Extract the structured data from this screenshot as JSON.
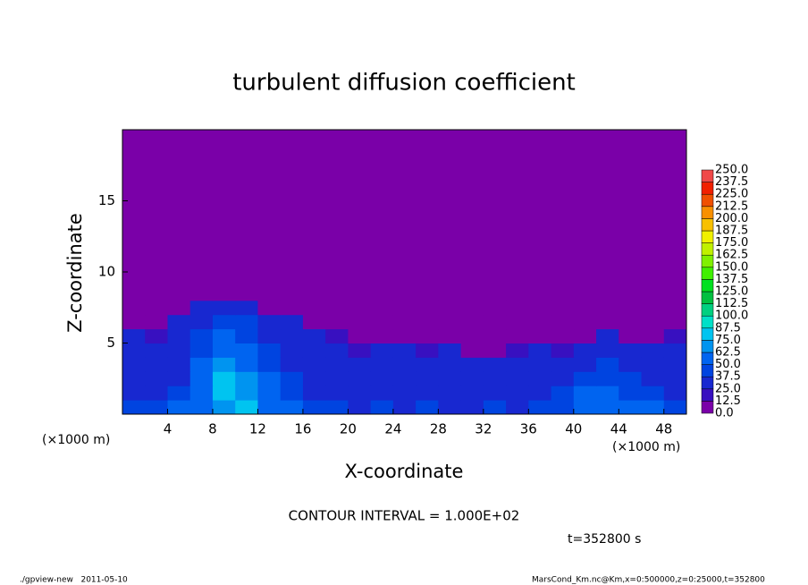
{
  "chart_data": {
    "type": "heatmap",
    "title": "turbulent diffusion coefficient",
    "xlabel": "X-coordinate",
    "ylabel": "Z-coordinate",
    "xunits": "(×1000 m)",
    "yunits": "(×1000 m)",
    "annotation": "CONTOUR INTERVAL = 1.000E+02",
    "time_label": "t=352800 s",
    "footer_left": "./gpview-new   2011-05-10",
    "footer_right": "MarsCond_Km.nc@Km,x=0:500000,z=0:25000,t=352800",
    "xlim": [
      0,
      50
    ],
    "ylim": [
      0,
      20
    ],
    "xticks": [
      4,
      8,
      12,
      16,
      20,
      24,
      28,
      32,
      36,
      40,
      44,
      48
    ],
    "yticks": [
      5,
      10,
      15
    ],
    "x_bins": [
      0,
      2,
      4,
      6,
      8,
      10,
      12,
      14,
      16,
      18,
      20,
      22,
      24,
      26,
      28,
      30,
      32,
      34,
      36,
      38,
      40,
      42,
      44,
      46,
      48,
      50
    ],
    "y_bins": [
      0,
      1,
      2,
      3,
      4,
      5,
      6,
      7,
      8,
      20
    ],
    "values": [
      [
        45,
        40,
        55,
        50,
        70,
        75,
        60,
        50,
        45,
        40,
        35,
        40,
        35,
        40,
        30,
        35,
        40,
        35,
        40,
        45,
        60,
        55,
        60,
        50,
        40
      ],
      [
        35,
        30,
        40,
        60,
        75,
        70,
        55,
        40,
        35,
        30,
        30,
        35,
        30,
        25,
        30,
        35,
        30,
        30,
        35,
        40,
        55,
        50,
        45,
        40,
        35
      ],
      [
        30,
        30,
        35,
        55,
        80,
        65,
        50,
        40,
        35,
        30,
        25,
        30,
        30,
        25,
        25,
        30,
        35,
        30,
        30,
        35,
        40,
        45,
        40,
        35,
        30
      ],
      [
        25,
        30,
        30,
        50,
        70,
        60,
        45,
        35,
        30,
        30,
        30,
        25,
        35,
        30,
        25,
        30,
        25,
        30,
        25,
        30,
        35,
        40,
        35,
        30,
        30
      ],
      [
        25,
        25,
        30,
        40,
        60,
        50,
        40,
        35,
        30,
        25,
        20,
        30,
        25,
        20,
        25,
        5,
        5,
        20,
        25,
        20,
        25,
        35,
        30,
        25,
        30
      ],
      [
        25,
        20,
        30,
        40,
        55,
        45,
        35,
        30,
        25,
        20,
        5,
        5,
        5,
        5,
        5,
        5,
        5,
        5,
        5,
        5,
        5,
        30,
        5,
        5,
        20
      ],
      [
        5,
        5,
        25,
        35,
        45,
        40,
        30,
        25,
        5,
        5,
        5,
        5,
        5,
        5,
        5,
        5,
        5,
        5,
        5,
        5,
        5,
        5,
        5,
        5,
        5
      ],
      [
        5,
        5,
        5,
        30,
        35,
        30,
        5,
        5,
        5,
        5,
        5,
        5,
        5,
        5,
        5,
        5,
        5,
        5,
        5,
        5,
        5,
        5,
        5,
        5,
        5
      ],
      [
        5,
        5,
        5,
        5,
        5,
        5,
        5,
        5,
        5,
        5,
        5,
        5,
        5,
        5,
        5,
        5,
        5,
        5,
        5,
        5,
        5,
        5,
        5,
        5,
        5
      ]
    ],
    "levels": [
      {
        "value": 0,
        "label": "0.0"
      },
      12.5,
      {
        "value": 25,
        "label": "25.0"
      },
      37.5,
      {
        "value": 50,
        "label": "50.0"
      },
      62.5,
      {
        "value": 75,
        "label": "75.0"
      },
      87.5,
      {
        "value": 100,
        "label": "100.0"
      },
      112.5,
      {
        "value": 125,
        "label": "125.0"
      },
      137.5,
      {
        "value": 150,
        "label": "150.0"
      },
      162.5,
      {
        "value": 175,
        "label": "175.0"
      },
      187.5,
      {
        "value": 200,
        "label": "200.0"
      },
      212.5,
      {
        "value": 225,
        "label": "225.0"
      },
      237.5,
      {
        "value": 250,
        "label": "250.0"
      }
    ],
    "colors": [
      "#7a00a8",
      "#3810c0",
      "#1828d0",
      "#0044e0",
      "#0064f0",
      "#0094f0",
      "#00c4f0",
      "#00e0c8",
      "#00d080",
      "#00c040",
      "#00e020",
      "#40f000",
      "#80f000",
      "#c0f000",
      "#f0f000",
      "#f8c000",
      "#f89000",
      "#f05000",
      "#f02000",
      "#f04848",
      "#f08888"
    ]
  }
}
